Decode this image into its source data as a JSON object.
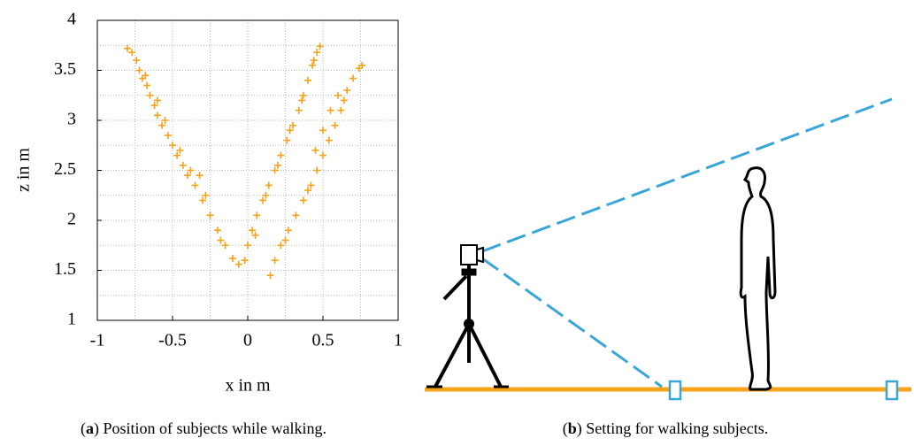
{
  "chart_data": {
    "type": "scatter",
    "xlabel": "x in m",
    "ylabel": "z in m",
    "color": "#f7a21b",
    "xlim": [
      -1,
      1
    ],
    "ylim": [
      1,
      4
    ],
    "xticks": [
      -1,
      -0.5,
      0,
      0.5,
      1
    ],
    "yticks": [
      1,
      1.5,
      2,
      2.5,
      3,
      3.5,
      4
    ],
    "xminor": [
      -0.75,
      -0.25,
      0.25,
      0.75
    ],
    "yminor": [
      1.25,
      1.75,
      2.25,
      2.75,
      3.25,
      3.75
    ],
    "grid": true,
    "x": [
      -0.8,
      -0.77,
      -0.74,
      -0.72,
      -0.7,
      -0.67,
      -0.65,
      -0.62,
      -0.6,
      -0.57,
      -0.53,
      -0.5,
      -0.47,
      -0.43,
      -0.4,
      -0.35,
      -0.3,
      -0.25,
      -0.2,
      -0.15,
      -0.1,
      -0.06,
      -0.68,
      -0.6,
      -0.55,
      -0.45,
      -0.38,
      -0.28,
      -0.18,
      -0.32,
      -0.02,
      0.0,
      0.03,
      0.06,
      0.1,
      0.14,
      0.18,
      0.22,
      0.26,
      0.3,
      0.34,
      0.37,
      0.4,
      0.43,
      0.46,
      0.48,
      0.05,
      0.12,
      0.2,
      0.28,
      0.36,
      0.44,
      0.15,
      0.18,
      0.22,
      0.27,
      0.32,
      0.37,
      0.42,
      0.46,
      0.5,
      0.54,
      0.58,
      0.62,
      0.64,
      0.6,
      0.55,
      0.5,
      0.45,
      0.66,
      0.7,
      0.74,
      0.76,
      0.25,
      0.4
    ],
    "values": [
      3.72,
      3.68,
      3.6,
      3.5,
      3.42,
      3.35,
      3.25,
      3.15,
      3.05,
      2.95,
      2.85,
      2.75,
      2.65,
      2.55,
      2.45,
      2.35,
      2.2,
      2.05,
      1.9,
      1.75,
      1.62,
      1.56,
      3.45,
      3.2,
      3.0,
      2.7,
      2.5,
      2.25,
      1.8,
      2.45,
      1.6,
      1.75,
      1.9,
      2.05,
      2.2,
      2.35,
      2.5,
      2.65,
      2.8,
      2.95,
      3.1,
      3.25,
      3.4,
      3.55,
      3.68,
      3.74,
      1.85,
      2.25,
      2.55,
      2.9,
      3.2,
      3.6,
      1.45,
      1.6,
      1.75,
      1.9,
      2.05,
      2.2,
      2.35,
      2.5,
      2.65,
      2.8,
      2.95,
      3.1,
      3.2,
      3.25,
      3.1,
      2.9,
      2.7,
      3.3,
      3.42,
      3.52,
      3.55,
      1.8,
      2.3
    ]
  },
  "captions": [
    {
      "parts": [
        "(",
        "a",
        ") Position of subjects while walking."
      ]
    },
    {
      "parts": [
        "(",
        "b",
        ") Setting for walking subjects."
      ]
    }
  ]
}
